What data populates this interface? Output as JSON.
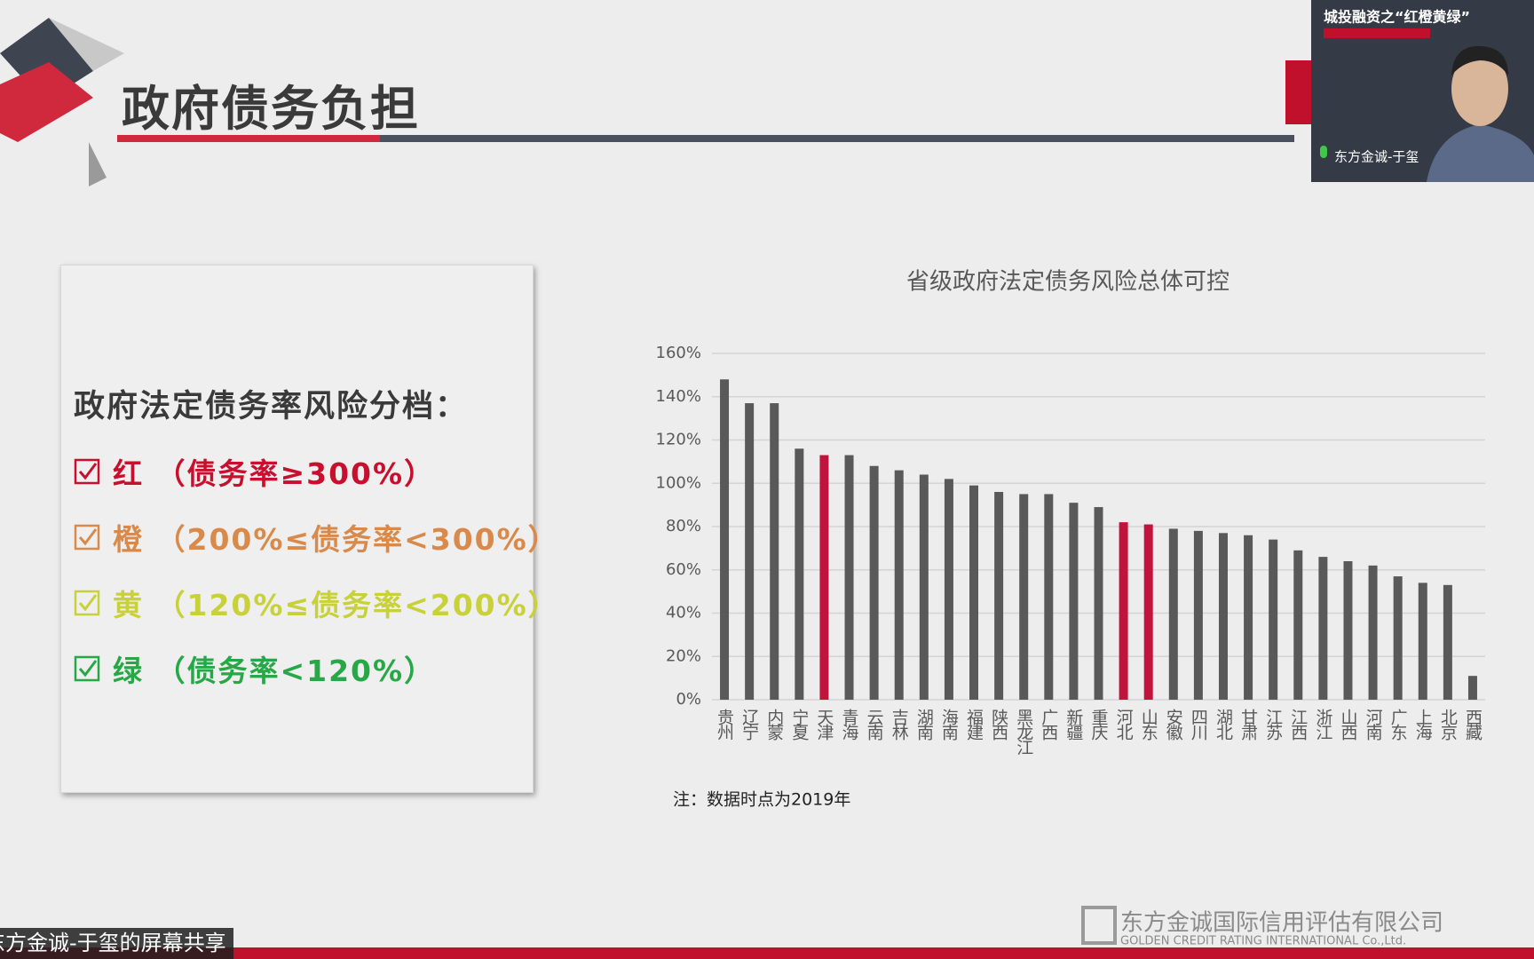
{
  "header": {
    "title": "政府债务负担"
  },
  "risk_box": {
    "heading": "政府法定债务率风险分档：",
    "items": [
      {
        "text": "红 （债务率≥300%）",
        "color": "#c8102e"
      },
      {
        "text": "橙 （200%≤债务率<300%）",
        "color": "#d98a4a"
      },
      {
        "text": "黄 （120%≤债务率<200%）",
        "color": "#c9d13a"
      },
      {
        "text": "绿 （债务率<120%）",
        "color": "#27a847"
      }
    ]
  },
  "chart_data": {
    "type": "bar",
    "title": "省级政府法定债务风险总体可控",
    "categories": [
      "贵州",
      "辽宁",
      "内蒙",
      "宁夏",
      "天津",
      "青海",
      "云南",
      "吉林",
      "湖南",
      "海南",
      "福建",
      "陕西",
      "黑龙江",
      "广西",
      "新疆",
      "重庆",
      "河北",
      "山东",
      "安徽",
      "四川",
      "湖北",
      "甘肃",
      "江苏",
      "江西",
      "浙江",
      "山西",
      "河南",
      "广东",
      "上海",
      "北京",
      "西藏"
    ],
    "values": [
      148,
      137,
      137,
      116,
      113,
      113,
      108,
      106,
      104,
      102,
      99,
      96,
      95,
      95,
      91,
      89,
      82,
      81,
      79,
      78,
      77,
      76,
      74,
      69,
      66,
      64,
      62,
      57,
      54,
      53,
      11
    ],
    "colors": [
      "#595959",
      "#595959",
      "#595959",
      "#595959",
      "#c0143c",
      "#595959",
      "#595959",
      "#595959",
      "#595959",
      "#595959",
      "#595959",
      "#595959",
      "#595959",
      "#595959",
      "#595959",
      "#595959",
      "#c0143c",
      "#c0143c",
      "#595959",
      "#595959",
      "#595959",
      "#595959",
      "#595959",
      "#595959",
      "#595959",
      "#595959",
      "#595959",
      "#595959",
      "#595959",
      "#595959",
      "#595959"
    ],
    "ylim": [
      0,
      160
    ],
    "yticks": [
      {
        "value": 0,
        "label": "0%"
      },
      {
        "value": 20,
        "label": "20%"
      },
      {
        "value": 40,
        "label": "40%"
      },
      {
        "value": 60,
        "label": "60%"
      },
      {
        "value": 80,
        "label": "80%"
      },
      {
        "value": 100,
        "label": "100%"
      },
      {
        "value": 120,
        "label": "120%"
      },
      {
        "value": 140,
        "label": "140%"
      },
      {
        "value": 160,
        "label": "160%"
      }
    ],
    "grid": true,
    "note": "注：数据时点为2019年"
  },
  "video": {
    "title": "城投融资之“红橙黄绿”",
    "speaker": "东方金诚-于玺"
  },
  "share_label": "东方金诚-于玺的屏幕共享",
  "watermark": {
    "company": "东方金诚国际信用评估有限公司",
    "english": "GOLDEN CREDIT RATING INTERNATIONAL Co.,Ltd."
  }
}
